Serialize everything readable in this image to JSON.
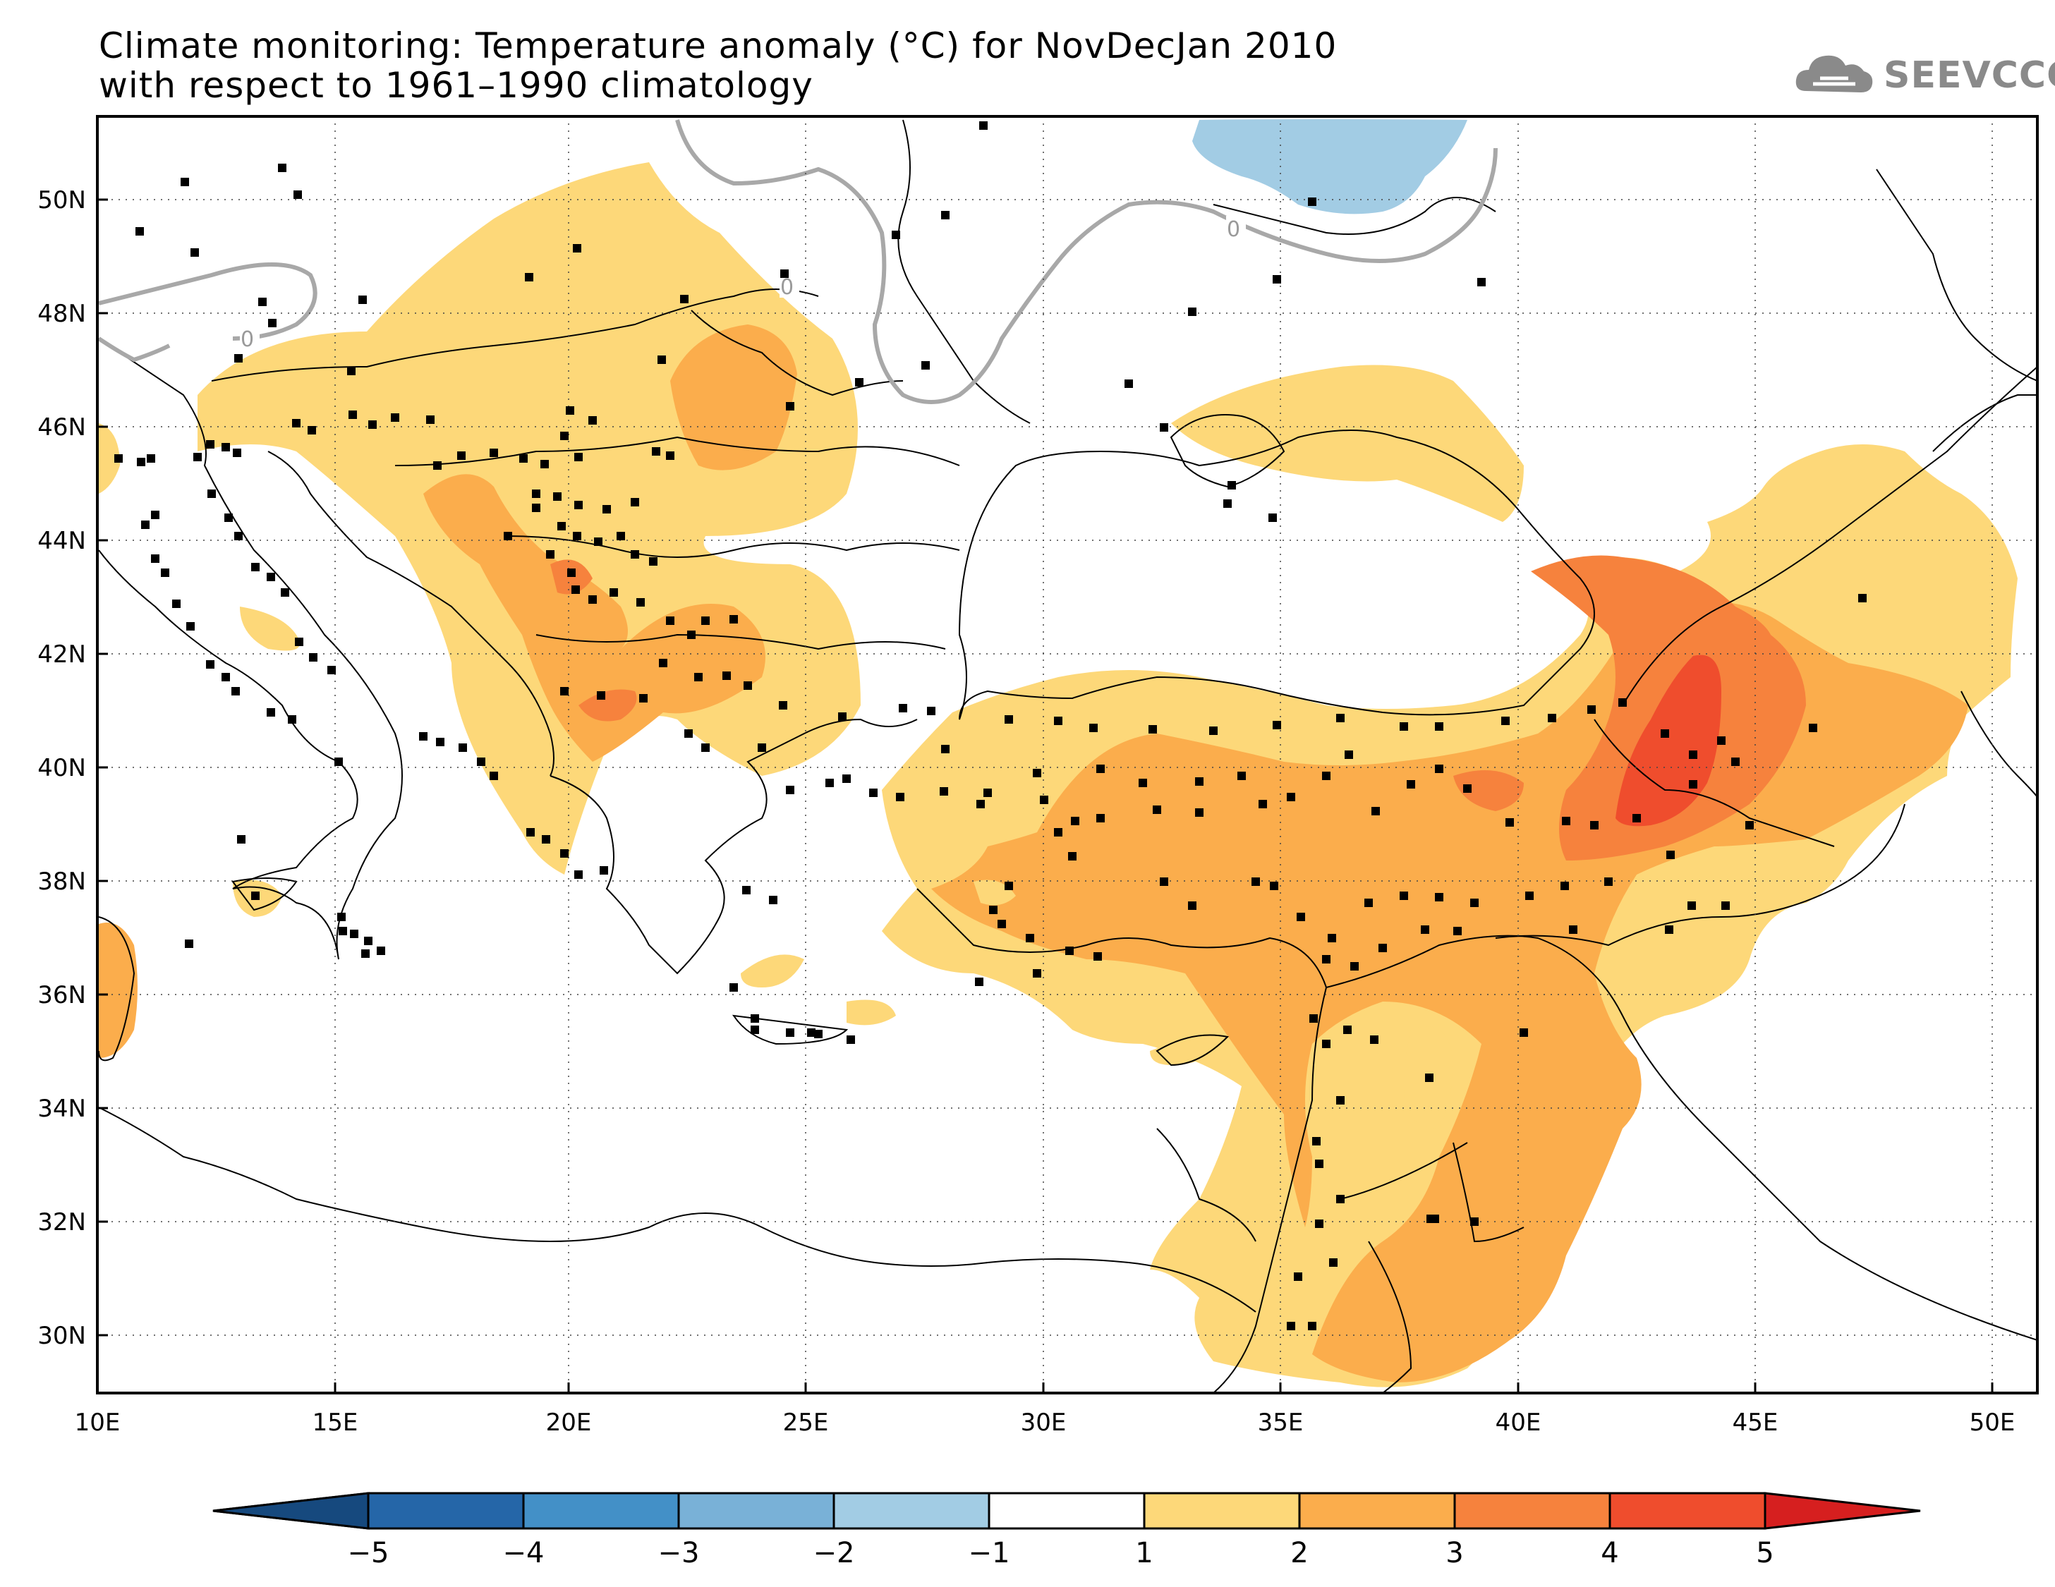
{
  "title": {
    "line1": "Climate monitoring: Temperature anomaly (°C) for NovDecJan 2010",
    "line2": "with respect to 1961–1990 climatology"
  },
  "logo": {
    "text": "SEEVCCC",
    "icon": "cloud-icon",
    "color": "#8a8a8a"
  },
  "map": {
    "lon_ticks": [
      "10E",
      "15E",
      "20E",
      "25E",
      "30E",
      "35E",
      "40E",
      "45E",
      "50E"
    ],
    "lat_ticks": [
      "50N",
      "48N",
      "46N",
      "44N",
      "42N",
      "40N",
      "38N",
      "36N",
      "34N",
      "32N",
      "30N"
    ],
    "contour_label": "0",
    "colors": {
      "c1_2": "#fdd879",
      "c2_3": "#fbad4c",
      "c3_4": "#f6823d",
      "c4_5": "#ef4d2d",
      "cm2_m1": "#a2cce4"
    }
  },
  "colorbar": {
    "labels": [
      "−5",
      "−4",
      "−3",
      "−2",
      "−1",
      "1",
      "2",
      "3",
      "4",
      "5"
    ],
    "colors": [
      "#16497e",
      "#2566a8",
      "#4390c7",
      "#79b1d7",
      "#a2cce4",
      "#ffffff",
      "#fdd879",
      "#fbad4c",
      "#f6823d",
      "#ef4d2d",
      "#d61f1f"
    ]
  }
}
